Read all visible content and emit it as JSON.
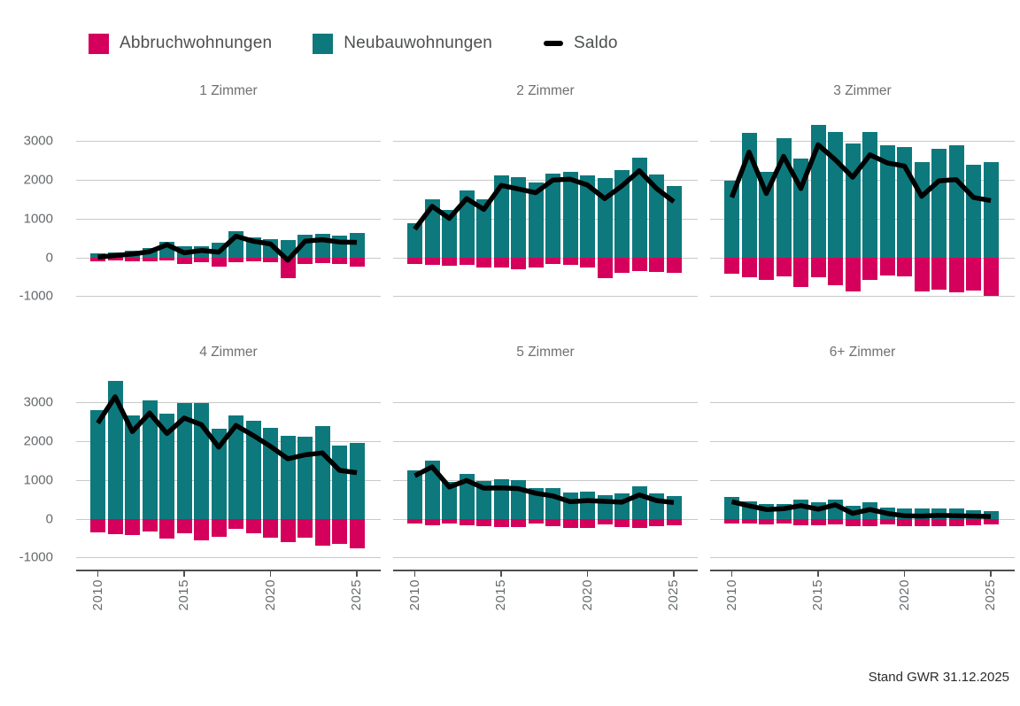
{
  "meta": {
    "footer": "Stand GWR 31.12.2025"
  },
  "colors": {
    "abbruch": "#d4005c",
    "neubau": "#0d797d",
    "saldo": "#000000",
    "grid": "#c9c9c9",
    "axis": "#4f4f4f"
  },
  "legend": {
    "items": [
      {
        "label": "Abbruchwohnungen",
        "swatch": "square",
        "color_key": "abbruch"
      },
      {
        "label": "Neubauwohnungen",
        "swatch": "square",
        "color_key": "neubau"
      },
      {
        "label": "Saldo",
        "swatch": "line",
        "color_key": "saldo"
      }
    ]
  },
  "chart_data": {
    "type": "bar",
    "subtype": "diverging-bars-with-line",
    "categories": [
      2010,
      2011,
      2012,
      2013,
      2014,
      2015,
      2016,
      2017,
      2018,
      2019,
      2020,
      2021,
      2022,
      2023,
      2024,
      2025
    ],
    "ylim": [
      -1150,
      3650
    ],
    "y_ticks": [
      3000,
      2000,
      1000,
      0,
      -1000
    ],
    "x_tick_years": [
      2010,
      2015,
      2020,
      2025
    ],
    "grid": true,
    "legend_position": "top",
    "panels": [
      {
        "title": "1 Zimmer",
        "series": [
          {
            "name": "Abbruchwohnungen",
            "values": [
              -90,
              -80,
              -90,
              -90,
              -80,
              -160,
              -120,
              -240,
              -120,
              -110,
              -120,
              -530,
              -170,
              -150,
              -170,
              -240
            ]
          },
          {
            "name": "Neubauwohnungen",
            "values": [
              100,
              130,
              180,
              240,
              410,
              280,
              300,
              380,
              670,
              530,
              470,
              460,
              590,
              610,
              570,
              630
            ]
          },
          {
            "name": "Saldo",
            "values": [
              10,
              50,
              90,
              150,
              330,
              120,
              180,
              140,
              550,
              420,
              350,
              -70,
              420,
              460,
              400,
              390
            ]
          }
        ]
      },
      {
        "title": "2 Zimmer",
        "series": [
          {
            "name": "Abbruchwohnungen",
            "values": [
              -160,
              -180,
              -220,
              -200,
              -260,
              -260,
              -300,
              -260,
              -160,
              -190,
              -250,
              -530,
              -400,
              -340,
              -370,
              -400
            ]
          },
          {
            "name": "Neubauwohnungen",
            "values": [
              890,
              1500,
              1230,
              1720,
              1500,
              2120,
              2070,
              1930,
              2160,
              2210,
              2120,
              2050,
              2250,
              2580,
              2150,
              1840
            ]
          },
          {
            "name": "Saldo",
            "values": [
              730,
              1320,
              1010,
              1520,
              1240,
              1860,
              1770,
              1670,
              2000,
              2020,
              1870,
              1520,
              1850,
              2240,
              1780,
              1440
            ]
          }
        ]
      },
      {
        "title": "3 Zimmer",
        "series": [
          {
            "name": "Abbruchwohnungen",
            "values": [
              -430,
              -500,
              -570,
              -480,
              -770,
              -520,
              -710,
              -880,
              -580,
              -460,
              -490,
              -880,
              -820,
              -890,
              -850,
              -1000
            ]
          },
          {
            "name": "Neubauwohnungen",
            "values": [
              1980,
              3220,
              2220,
              3090,
              2550,
              3430,
              3230,
              2950,
              3230,
              2900,
              2850,
              2460,
              2800,
              2900,
              2400,
              2470
            ]
          },
          {
            "name": "Saldo",
            "values": [
              1550,
              2720,
              1650,
              2610,
              1780,
              2910,
              2520,
              2070,
              2650,
              2440,
              2360,
              1580,
              1980,
              2010,
              1550,
              1470
            ]
          }
        ]
      },
      {
        "title": "4 Zimmer",
        "series": [
          {
            "name": "Abbruchwohnungen",
            "values": [
              -340,
              -400,
              -410,
              -320,
              -510,
              -380,
              -550,
              -470,
              -260,
              -380,
              -480,
              -600,
              -480,
              -700,
              -640,
              -760
            ]
          },
          {
            "name": "Neubauwohnungen",
            "values": [
              2810,
              3550,
              2660,
              3050,
              2710,
              2980,
              2980,
              2320,
              2670,
              2530,
              2350,
              2150,
              2130,
              2400,
              1890,
              1950
            ]
          },
          {
            "name": "Saldo",
            "values": [
              2470,
              3150,
              2250,
              2730,
              2200,
              2600,
              2430,
              1850,
              2410,
              2150,
              1870,
              1550,
              1650,
              1700,
              1250,
              1190
            ]
          }
        ]
      },
      {
        "title": "5 Zimmer",
        "series": [
          {
            "name": "Abbruchwohnungen",
            "values": [
              -130,
              -160,
              -130,
              -160,
              -180,
              -220,
              -210,
              -130,
              -200,
              -230,
              -230,
              -150,
              -220,
              -230,
              -180,
              -160
            ]
          },
          {
            "name": "Neubauwohnungen",
            "values": [
              1240,
              1500,
              950,
              1150,
              970,
              1020,
              990,
              790,
              790,
              670,
              700,
              600,
              650,
              850,
              650,
              580
            ]
          },
          {
            "name": "Saldo",
            "values": [
              1110,
              1340,
              820,
              990,
              790,
              800,
              780,
              660,
              590,
              440,
              470,
              450,
              430,
              620,
              470,
              420
            ]
          }
        ]
      },
      {
        "title": "6+ Zimmer",
        "series": [
          {
            "name": "Abbruchwohnungen",
            "values": [
              -120,
              -125,
              -140,
              -120,
              -160,
              -170,
              -140,
              -200,
              -180,
              -140,
              -180,
              -190,
              -180,
              -190,
              -160,
              -140
            ]
          },
          {
            "name": "Neubauwohnungen",
            "values": [
              560,
              460,
              380,
              380,
              500,
              420,
              500,
              340,
              420,
              280,
              260,
              260,
              270,
              270,
              230,
              200
            ]
          },
          {
            "name": "Saldo",
            "values": [
              440,
              335,
              240,
              260,
              340,
              250,
              360,
              140,
              240,
              140,
              80,
              70,
              90,
              80,
              70,
              60
            ]
          }
        ]
      }
    ]
  }
}
